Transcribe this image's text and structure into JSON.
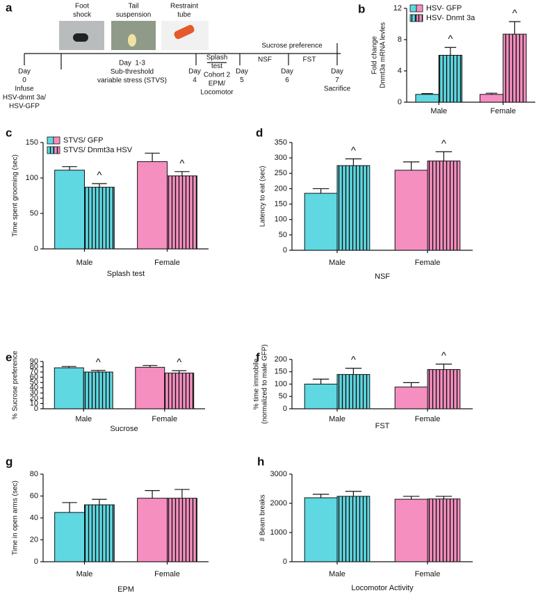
{
  "timeline": {
    "panel": "a",
    "labels": [
      [
        "Foot",
        "shock"
      ],
      [
        "Tail",
        "suspension"
      ],
      [
        "Restraint",
        "tube"
      ],
      [
        "Day",
        "0",
        "Infuse",
        "HSV-dnmt 3a/",
        "HSV-GFP"
      ],
      [
        "Day  1-3",
        "Sub-threshold",
        "variable stress (STVS)"
      ],
      [
        "Day",
        "4"
      ],
      [
        "Splash",
        "test",
        "Cohort 2",
        "EPM/",
        "Locomotor"
      ],
      [
        "Day",
        "5"
      ],
      [
        "Sucrose preference"
      ],
      [
        "NSF"
      ],
      [
        "FST"
      ],
      [
        "Day",
        "6"
      ],
      [
        "Day",
        "7",
        "Sacrifice"
      ]
    ]
  },
  "chart_data": [
    {
      "type": "bar",
      "panel": "b",
      "ylabel": [
        "Fold change",
        "Dnmt3a mRNA levles"
      ],
      "categories": [
        "Male",
        "Female"
      ],
      "colors": [
        "#5fd8e2",
        "#f58fc0"
      ],
      "legend": true,
      "series": [
        {
          "name": "HSV- GFP",
          "hatch": false,
          "values": [
            1,
            1
          ],
          "errors": [
            0.1,
            0.15
          ]
        },
        {
          "name": "HSV- Dnmt 3a",
          "hatch": true,
          "values": [
            6,
            8.7
          ],
          "errors": [
            1,
            1.6
          ],
          "annotations": [
            "^",
            "^"
          ]
        }
      ],
      "ylim": [
        0,
        12
      ],
      "yticks": [
        0,
        4,
        8,
        12
      ]
    },
    {
      "type": "bar",
      "panel": "c",
      "ylabel": [
        "Time spent grooming (sec)"
      ],
      "xlabel": "Splash test",
      "categories": [
        "Male",
        "Female"
      ],
      "colors": [
        "#5fd8e2",
        "#f58fc0"
      ],
      "legend": true,
      "series": [
        {
          "name": "STVS/ GFP",
          "hatch": false,
          "values": [
            111,
            123
          ],
          "errors": [
            5,
            12
          ]
        },
        {
          "name": "STVS/ Dnmt3a HSV",
          "hatch": true,
          "values": [
            87,
            103
          ],
          "errors": [
            5,
            6
          ],
          "annotations": [
            "^",
            "^"
          ]
        }
      ],
      "ylim": [
        0,
        150
      ],
      "yticks": [
        0,
        50,
        100,
        150
      ]
    },
    {
      "type": "bar",
      "panel": "d",
      "ylabel": [
        "Latency to eat (sec)"
      ],
      "xlabel": "NSF",
      "categories": [
        "Male",
        "Female"
      ],
      "colors": [
        "#5fd8e2",
        "#f58fc0"
      ],
      "legend": false,
      "series": [
        {
          "hatch": false,
          "values": [
            185,
            260
          ],
          "errors": [
            15,
            27
          ]
        },
        {
          "hatch": true,
          "values": [
            275,
            290
          ],
          "errors": [
            22,
            30
          ],
          "annotations": [
            "^",
            "^"
          ]
        }
      ],
      "ylim": [
        0,
        350
      ],
      "yticks": [
        0,
        50,
        100,
        150,
        200,
        250,
        300,
        350
      ]
    },
    {
      "type": "bar",
      "panel": "e",
      "ylabel": [
        "% Sucrose preference"
      ],
      "xlabel": "Sucrose",
      "categories": [
        "Male",
        "Female"
      ],
      "colors": [
        "#5fd8e2",
        "#f58fc0"
      ],
      "legend": false,
      "series": [
        {
          "hatch": false,
          "values": [
            78,
            79
          ],
          "errors": [
            2.5,
            3.5
          ]
        },
        {
          "hatch": true,
          "values": [
            70,
            68
          ],
          "errors": [
            3,
            4.5
          ],
          "annotations": [
            "^",
            "^"
          ]
        }
      ],
      "ylim": [
        0,
        90
      ],
      "yticks": [
        0,
        10,
        20,
        30,
        40,
        50,
        60,
        70,
        80,
        90
      ]
    },
    {
      "type": "bar",
      "panel": "f",
      "ylabel": [
        "% time immobile",
        "(normalized to male GFP)"
      ],
      "xlabel": "FST",
      "categories": [
        "Male",
        "Female"
      ],
      "colors": [
        "#5fd8e2",
        "#f58fc0"
      ],
      "legend": false,
      "series": [
        {
          "hatch": false,
          "values": [
            100,
            88
          ],
          "errors": [
            20,
            18
          ]
        },
        {
          "hatch": true,
          "values": [
            139,
            159
          ],
          "errors": [
            25,
            22
          ],
          "annotations": [
            "^",
            "^"
          ]
        }
      ],
      "ylim": [
        0,
        200
      ],
      "yticks": [
        0,
        50,
        100,
        150,
        200
      ]
    },
    {
      "type": "bar",
      "panel": "g",
      "ylabel": [
        "Time in open arms (sec)"
      ],
      "xlabel": "EPM",
      "categories": [
        "Male",
        "Female"
      ],
      "colors": [
        "#5fd8e2",
        "#f58fc0"
      ],
      "legend": false,
      "series": [
        {
          "hatch": false,
          "values": [
            45,
            58
          ],
          "errors": [
            9,
            7
          ]
        },
        {
          "hatch": true,
          "values": [
            52,
            58
          ],
          "errors": [
            5,
            8
          ]
        }
      ],
      "ylim": [
        0,
        80
      ],
      "yticks": [
        0,
        20,
        40,
        60,
        80
      ]
    },
    {
      "type": "bar",
      "panel": "h",
      "ylabel": [
        "# Beam breaks"
      ],
      "xlabel": "Locomotor Activity",
      "categories": [
        "Male",
        "Female"
      ],
      "colors": [
        "#5fd8e2",
        "#f58fc0"
      ],
      "legend": false,
      "series": [
        {
          "hatch": false,
          "values": [
            2190,
            2140
          ],
          "errors": [
            120,
            100
          ]
        },
        {
          "hatch": true,
          "values": [
            2240,
            2150
          ],
          "errors": [
            170,
            90
          ]
        }
      ],
      "ylim": [
        0,
        3000
      ],
      "yticks": [
        0,
        1000,
        2000,
        3000
      ]
    }
  ]
}
